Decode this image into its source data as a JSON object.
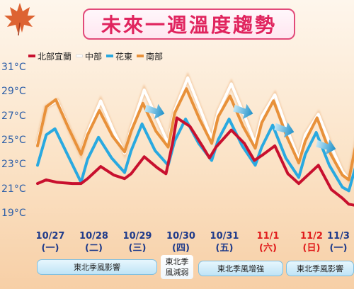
{
  "title": "未來一週溫度趨勢",
  "legend": [
    {
      "name": "北部宜蘭",
      "color": "#c8102e"
    },
    {
      "name": "中部",
      "color": "#ffffff"
    },
    {
      "name": "花東",
      "color": "#29a9e0"
    },
    {
      "name": "南部",
      "color": "#e8913a"
    }
  ],
  "annotations": {
    "pill1": "東北季風影響",
    "note_line1": "東北季",
    "note_line2": "風減弱",
    "pill2": "東北季風增強",
    "pill3": "東北季風影響"
  },
  "chart_data": {
    "type": "line",
    "ylabel": "",
    "ylim": [
      18.5,
      31.5
    ],
    "yticks": [
      "31°C",
      "29°C",
      "27°C",
      "25°C",
      "23°C",
      "21°C",
      "19°C"
    ],
    "ytick_values": [
      31,
      29,
      27,
      25,
      23,
      21,
      19
    ],
    "categories": [
      {
        "date": "10/27",
        "day": "(一)",
        "weekend": false
      },
      {
        "date": "10/28",
        "day": "(二)",
        "weekend": false
      },
      {
        "date": "10/29",
        "day": "(三)",
        "weekend": false
      },
      {
        "date": "10/30",
        "day": "(四)",
        "weekend": false
      },
      {
        "date": "10/31",
        "day": "(五)",
        "weekend": false
      },
      {
        "date": "11/1",
        "day": "(六)",
        "weekend": true
      },
      {
        "date": "11/2",
        "day": "(日)",
        "weekend": true
      },
      {
        "date": "11/3",
        "day": "(一)",
        "weekend": false
      }
    ],
    "x_unit": "day index (0 = 10/27 00:00)",
    "series": [
      {
        "name": "北部宜蘭",
        "color": "#c8102e",
        "points": [
          [
            0.0,
            21.5
          ],
          [
            0.2,
            21.8
          ],
          [
            0.45,
            21.6
          ],
          [
            0.8,
            21.5
          ],
          [
            1.0,
            21.5
          ],
          [
            1.15,
            21.9
          ],
          [
            1.45,
            22.9
          ],
          [
            1.75,
            22.2
          ],
          [
            2.0,
            21.9
          ],
          [
            2.15,
            22.3
          ],
          [
            2.45,
            23.7
          ],
          [
            2.75,
            22.8
          ],
          [
            2.95,
            22.3
          ],
          [
            3.1,
            24.8
          ],
          [
            3.2,
            26.9
          ],
          [
            3.5,
            26.2
          ],
          [
            3.8,
            24.5
          ],
          [
            3.95,
            23.6
          ],
          [
            4.1,
            24.5
          ],
          [
            4.45,
            25.9
          ],
          [
            4.75,
            24.8
          ],
          [
            4.98,
            23.4
          ],
          [
            5.15,
            23.8
          ],
          [
            5.45,
            24.6
          ],
          [
            5.75,
            22.3
          ],
          [
            6.0,
            21.5
          ],
          [
            6.12,
            21.9
          ],
          [
            6.45,
            23.0
          ],
          [
            6.75,
            21.0
          ],
          [
            7.0,
            20.3
          ],
          [
            7.15,
            19.8
          ],
          [
            7.3,
            19.7
          ],
          [
            7.45,
            22.6
          ]
        ]
      },
      {
        "name": "中部",
        "color": "#ffffff",
        "points": [
          [
            0.0,
            24.8
          ],
          [
            0.2,
            27.8
          ],
          [
            0.45,
            28.3
          ],
          [
            0.75,
            25.8
          ],
          [
            1.0,
            23.9
          ],
          [
            1.15,
            25.7
          ],
          [
            1.45,
            28.3
          ],
          [
            1.75,
            25.8
          ],
          [
            2.0,
            24.0
          ],
          [
            2.15,
            26.0
          ],
          [
            2.45,
            29.2
          ],
          [
            2.75,
            26.8
          ],
          [
            3.0,
            24.8
          ],
          [
            3.15,
            27.5
          ],
          [
            3.45,
            30.2
          ],
          [
            3.75,
            27.5
          ],
          [
            4.0,
            25.2
          ],
          [
            4.15,
            27.4
          ],
          [
            4.45,
            29.7
          ],
          [
            4.75,
            27.1
          ],
          [
            5.0,
            24.8
          ],
          [
            5.15,
            27.0
          ],
          [
            5.45,
            28.8
          ],
          [
            5.75,
            25.8
          ],
          [
            6.0,
            23.5
          ],
          [
            6.15,
            25.5
          ],
          [
            6.45,
            27.2
          ],
          [
            6.75,
            24.5
          ],
          [
            7.0,
            22.5
          ],
          [
            7.15,
            21.8
          ],
          [
            7.3,
            24.5
          ],
          [
            7.45,
            27.3
          ]
        ]
      },
      {
        "name": "花東",
        "color": "#29a9e0",
        "points": [
          [
            0.0,
            23.0
          ],
          [
            0.2,
            25.5
          ],
          [
            0.4,
            26.0
          ],
          [
            0.7,
            23.8
          ],
          [
            1.0,
            21.6
          ],
          [
            1.15,
            23.5
          ],
          [
            1.4,
            25.3
          ],
          [
            1.7,
            23.6
          ],
          [
            2.0,
            22.4
          ],
          [
            2.15,
            24.2
          ],
          [
            2.4,
            26.4
          ],
          [
            2.7,
            24.2
          ],
          [
            3.0,
            23.0
          ],
          [
            3.15,
            25.0
          ],
          [
            3.4,
            26.8
          ],
          [
            3.7,
            24.8
          ],
          [
            4.0,
            23.4
          ],
          [
            4.15,
            25.1
          ],
          [
            4.4,
            26.8
          ],
          [
            4.7,
            24.6
          ],
          [
            5.0,
            23.0
          ],
          [
            5.15,
            24.5
          ],
          [
            5.4,
            26.3
          ],
          [
            5.7,
            23.6
          ],
          [
            6.0,
            22.0
          ],
          [
            6.15,
            23.9
          ],
          [
            6.4,
            25.7
          ],
          [
            6.7,
            23.0
          ],
          [
            7.0,
            21.2
          ],
          [
            7.15,
            20.9
          ],
          [
            7.3,
            22.8
          ],
          [
            7.45,
            24.7
          ]
        ]
      },
      {
        "name": "南部",
        "color": "#e8913a",
        "points": [
          [
            0.0,
            24.6
          ],
          [
            0.2,
            27.8
          ],
          [
            0.42,
            28.4
          ],
          [
            0.72,
            26.0
          ],
          [
            1.0,
            23.9
          ],
          [
            1.15,
            25.5
          ],
          [
            1.42,
            27.5
          ],
          [
            1.72,
            25.4
          ],
          [
            2.0,
            24.1
          ],
          [
            2.15,
            25.8
          ],
          [
            2.42,
            28.1
          ],
          [
            2.72,
            25.8
          ],
          [
            3.0,
            24.5
          ],
          [
            3.15,
            27.3
          ],
          [
            3.42,
            29.3
          ],
          [
            3.72,
            26.8
          ],
          [
            4.0,
            24.8
          ],
          [
            4.15,
            27.0
          ],
          [
            4.42,
            28.7
          ],
          [
            4.72,
            26.2
          ],
          [
            5.0,
            24.4
          ],
          [
            5.15,
            26.5
          ],
          [
            5.42,
            28.3
          ],
          [
            5.72,
            25.4
          ],
          [
            6.0,
            23.2
          ],
          [
            6.15,
            25.0
          ],
          [
            6.42,
            26.9
          ],
          [
            6.72,
            24.0
          ],
          [
            7.0,
            22.2
          ],
          [
            7.15,
            21.8
          ],
          [
            7.3,
            24.5
          ],
          [
            7.45,
            26.8
          ]
        ]
      }
    ]
  }
}
